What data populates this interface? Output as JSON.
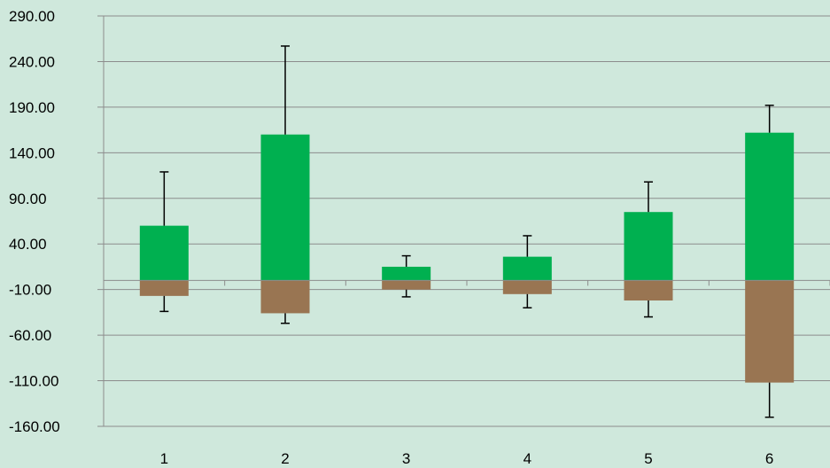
{
  "chart_data": {
    "type": "bar",
    "categories": [
      "1",
      "2",
      "3",
      "4",
      "5",
      "6"
    ],
    "series": [
      {
        "values": [
          60,
          160,
          15,
          26,
          75,
          162
        ],
        "color": "#00b050",
        "error_plus": [
          59,
          97,
          12,
          23,
          33,
          30
        ]
      },
      {
        "values": [
          -17,
          -36,
          -10,
          -15,
          -22,
          -112
        ],
        "color": "#997552",
        "error_minus": [
          17,
          11,
          8,
          15,
          18,
          38
        ]
      }
    ],
    "ylim": [
      -160,
      290
    ],
    "y_ticks": [
      290,
      240,
      190,
      140,
      90,
      40,
      -10,
      -60,
      -110,
      -160
    ],
    "y_tick_labels": [
      "290.00",
      "240.00",
      "190.00",
      "140.00",
      "90.00",
      "40.00",
      "-10.00",
      "-60.00",
      "-110.00",
      "-160.00"
    ],
    "stacked": true,
    "grid": true,
    "legend": "none",
    "colors": {
      "background": "#cfe8dc",
      "grid": "#8c8c8c",
      "error_bar": "#000000"
    }
  }
}
